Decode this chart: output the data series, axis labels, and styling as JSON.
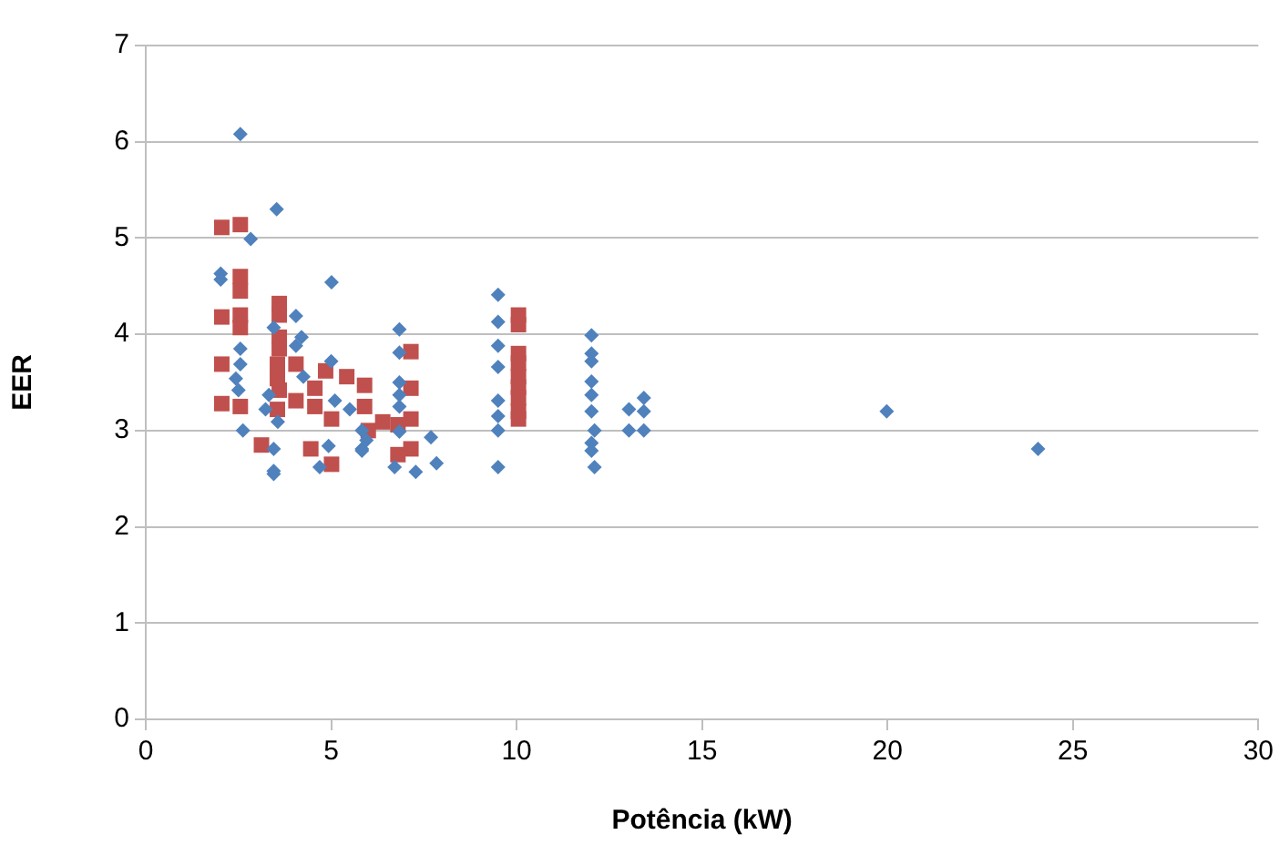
{
  "chart_data": {
    "type": "scatter",
    "xlabel": "Potência (kW)",
    "ylabel": "EER",
    "xlim": [
      0,
      30
    ],
    "xticks": [
      0,
      5,
      10,
      15,
      20,
      25,
      30
    ],
    "ylim": [
      0,
      7
    ],
    "yticks": [
      0,
      1,
      2,
      3,
      4,
      5,
      6,
      7
    ],
    "grid": "y",
    "legend": false,
    "series": [
      {
        "color": "#4f81bd",
        "marker": "diamond",
        "x": [
          2.55,
          3.53,
          2.83,
          2.02,
          2.02,
          5.01,
          2.55,
          2.55,
          2.43,
          2.5,
          2.62,
          4.05,
          4.2,
          4.05,
          3.45,
          3.32,
          3.23,
          3.56,
          3.45,
          3.45,
          3.45,
          4.25,
          5.0,
          4.69,
          4.93,
          5.5,
          5.83,
          5.83,
          5.1,
          6.84,
          6.84,
          6.84,
          6.84,
          6.84,
          6.84,
          6.71,
          7.28,
          7.84,
          7.69,
          5.83,
          5.95,
          9.5,
          9.5,
          9.5,
          9.5,
          9.5,
          9.5,
          9.5,
          9.5,
          12.02,
          12.02,
          12.02,
          12.02,
          12.02,
          12.02,
          12.1,
          12.02,
          12.02,
          12.1,
          13.03,
          13.03,
          13.43,
          13.43,
          13.43,
          19.98,
          24.06
        ],
        "values": [
          6.08,
          5.3,
          4.99,
          4.63,
          4.57,
          4.54,
          3.85,
          3.69,
          3.54,
          3.42,
          3.0,
          4.19,
          3.97,
          3.88,
          4.07,
          3.37,
          3.22,
          3.09,
          2.81,
          2.58,
          2.55,
          3.56,
          3.72,
          2.62,
          2.84,
          3.22,
          3.0,
          2.81,
          3.31,
          4.05,
          3.81,
          3.5,
          3.37,
          3.25,
          2.99,
          2.62,
          2.57,
          2.66,
          2.93,
          2.79,
          2.9,
          4.41,
          4.13,
          3.88,
          3.66,
          3.31,
          3.15,
          3.0,
          2.62,
          3.99,
          3.8,
          3.72,
          3.51,
          3.37,
          3.2,
          3.0,
          2.87,
          2.79,
          2.62,
          3.22,
          3.0,
          3.34,
          3.2,
          3.0,
          3.2,
          2.81
        ]
      },
      {
        "color": "#c0504d",
        "marker": "square",
        "x": [
          2.05,
          2.55,
          2.55,
          2.55,
          2.05,
          2.55,
          2.55,
          2.05,
          2.05,
          2.55,
          3.6,
          3.6,
          3.6,
          3.6,
          3.55,
          3.55,
          3.6,
          4.05,
          4.05,
          3.55,
          3.12,
          4.45,
          4.56,
          4.56,
          5.01,
          5.01,
          4.85,
          5.42,
          7.15,
          7.15,
          7.15,
          7.15,
          6.8,
          6.8,
          6.39,
          6.0,
          5.9,
          5.9,
          10.05,
          10.05,
          10.05,
          10.05,
          10.05,
          10.05,
          10.05,
          10.05,
          10.05
        ],
        "values": [
          5.11,
          5.14,
          4.6,
          4.45,
          4.18,
          4.2,
          4.07,
          3.69,
          3.28,
          3.25,
          4.32,
          4.2,
          3.97,
          3.85,
          3.69,
          3.54,
          3.42,
          3.69,
          3.31,
          3.22,
          2.85,
          2.81,
          3.44,
          3.25,
          2.65,
          3.12,
          3.62,
          3.56,
          3.82,
          3.44,
          3.12,
          2.81,
          3.06,
          2.75,
          3.09,
          3.0,
          3.47,
          3.25,
          4.2,
          4.1,
          3.8,
          3.7,
          3.56,
          3.45,
          3.34,
          3.2,
          3.12
        ]
      }
    ]
  }
}
